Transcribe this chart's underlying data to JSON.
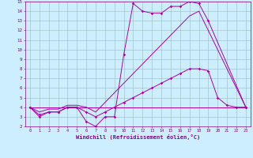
{
  "bg_color": "#cceeff",
  "line_color": "#aa00aa",
  "grid_color": "#99bbbb",
  "xlabel": "Windchill (Refroidissement éolien,°C)",
  "xmin": 0,
  "xmax": 23,
  "ymin": 2,
  "ymax": 15,
  "series1_x": [
    0,
    1,
    2,
    3,
    4,
    5,
    6,
    7,
    8,
    9,
    10,
    11,
    12,
    13,
    14,
    15,
    16,
    17,
    18,
    19,
    23
  ],
  "series1_y": [
    4,
    3,
    3.5,
    3.5,
    4,
    4,
    2.5,
    2,
    3,
    3,
    9.5,
    14.8,
    14,
    13.8,
    13.8,
    14.5,
    14.5,
    15,
    14.8,
    13,
    4
  ],
  "series2_x": [
    0,
    23
  ],
  "series2_y": [
    4,
    4
  ],
  "series3_x": [
    0,
    1,
    2,
    3,
    4,
    5,
    6,
    7,
    8,
    9,
    10,
    11,
    12,
    13,
    14,
    15,
    16,
    17,
    18,
    23
  ],
  "series3_y": [
    4,
    3.5,
    3.8,
    3.8,
    4.2,
    4.2,
    4,
    3.5,
    4.5,
    5.5,
    6.5,
    7.5,
    8.5,
    9.5,
    10.5,
    11.5,
    12.5,
    13.5,
    14,
    4
  ],
  "series4_x": [
    0,
    1,
    2,
    3,
    4,
    5,
    6,
    7,
    8,
    9,
    10,
    11,
    12,
    13,
    14,
    15,
    16,
    17,
    18,
    19,
    20,
    21,
    22,
    23
  ],
  "series4_y": [
    4,
    3.2,
    3.5,
    3.5,
    4,
    4,
    3.5,
    3,
    3.5,
    4,
    4.5,
    5,
    5.5,
    6,
    6.5,
    7,
    7.5,
    8,
    8,
    7.8,
    5,
    4.2,
    4,
    4
  ]
}
